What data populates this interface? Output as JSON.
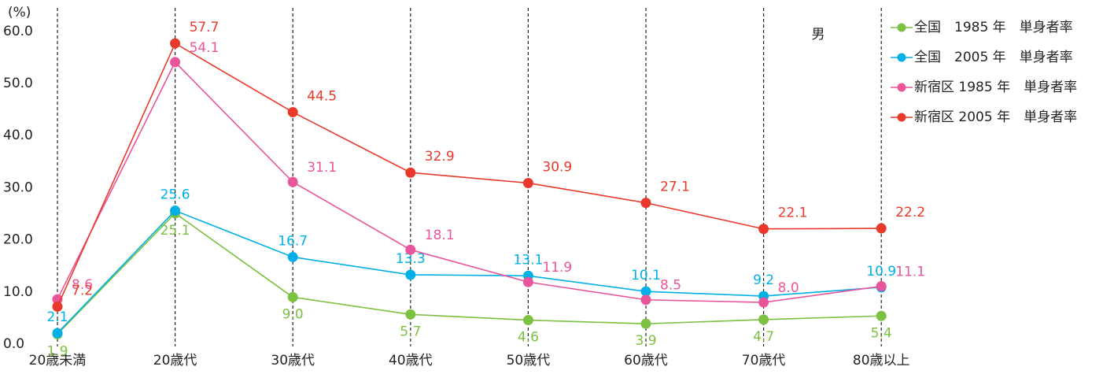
{
  "chart_data": {
    "type": "line",
    "y_label": "(%)",
    "annotation": "男",
    "categories": [
      "20歳未満",
      "20歳代",
      "30歳代",
      "40歳代",
      "50歳代",
      "60歳代",
      "70歳代",
      "80歳以上"
    ],
    "series": [
      {
        "name": "全国　1985 年　単身者率",
        "color": "#7dc142",
        "values": [
          1.9,
          25.1,
          9.0,
          5.7,
          4.6,
          3.9,
          4.7,
          5.4
        ],
        "value_labels": [
          "1.9",
          "25.1",
          "9.0",
          "5.7",
          "4.6",
          "3.9",
          "4.7",
          "5.4"
        ]
      },
      {
        "name": "全国　2005 年　単身者率",
        "color": "#00b0e6",
        "values": [
          2.1,
          25.6,
          16.7,
          13.3,
          13.1,
          10.1,
          9.2,
          10.9
        ],
        "value_labels": [
          "2.1",
          "25.6",
          "16.7",
          "13.3",
          "13.1",
          "10.1",
          "9.2",
          "10.9"
        ]
      },
      {
        "name": "新宿区 1985 年　単身者率",
        "color": "#e8559b",
        "values": [
          8.6,
          54.1,
          31.1,
          18.1,
          11.9,
          8.5,
          8.0,
          11.1
        ],
        "value_labels": [
          "8.6",
          "54.1",
          "31.1",
          "18.1",
          "11.9",
          "8.5",
          "8.0",
          "11.1"
        ]
      },
      {
        "name": "新宿区 2005 年　単身者率",
        "color": "#e8392a",
        "values": [
          7.2,
          57.7,
          44.5,
          32.9,
          30.9,
          27.1,
          22.1,
          22.2
        ],
        "value_labels": [
          "7.2",
          "57.7",
          "44.5",
          "32.9",
          "30.9",
          "27.1",
          "22.1",
          "22.2"
        ]
      }
    ],
    "ylim": [
      0,
      63
    ],
    "yticks": [
      {
        "value": 0,
        "label": "0.0"
      },
      {
        "value": 10,
        "label": "10.0"
      },
      {
        "value": 20,
        "label": "20.0"
      },
      {
        "value": 30,
        "label": "30.0"
      },
      {
        "value": 40,
        "label": "40.0"
      },
      {
        "value": 50,
        "label": "50.0"
      },
      {
        "value": 60,
        "label": "60.0"
      }
    ],
    "grid": true,
    "legend": "right"
  }
}
